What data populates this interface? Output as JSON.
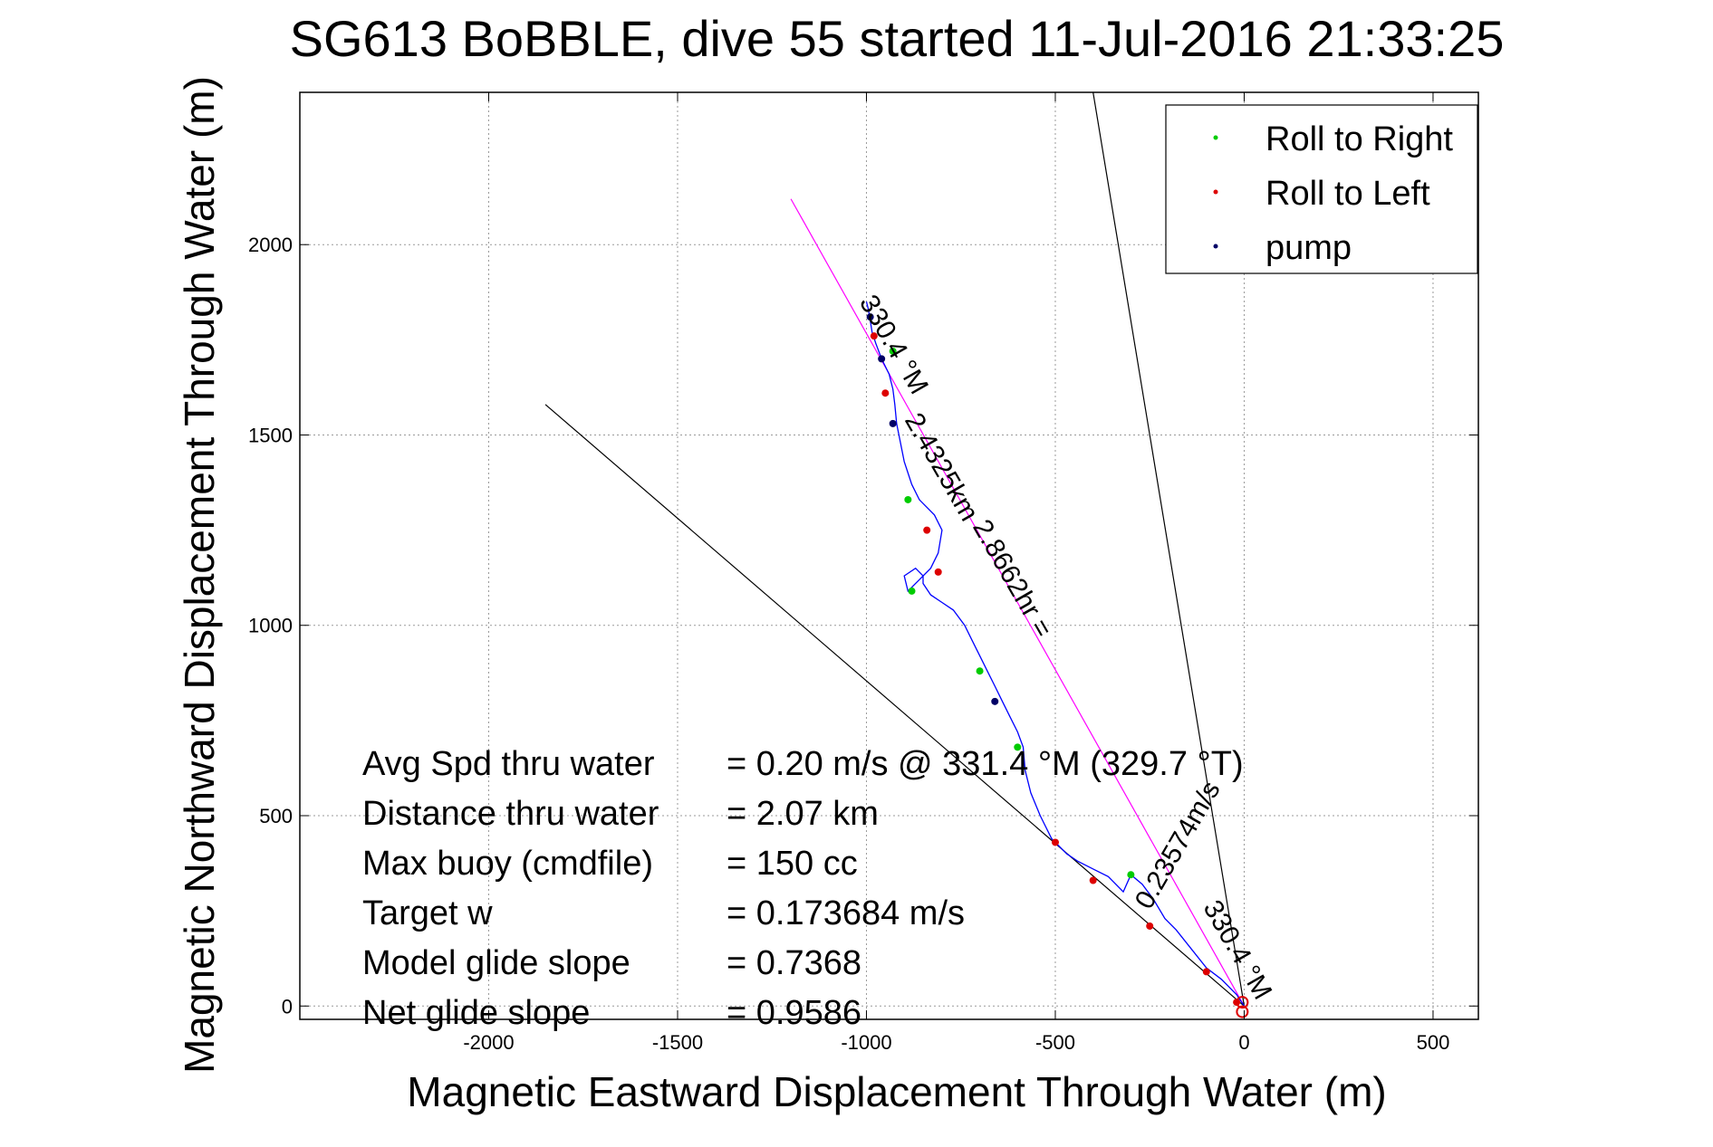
{
  "chart_data": {
    "type": "line",
    "title": "SG613 BoBBLE, dive 55 started 11-Jul-2016 21:33:25",
    "xlabel": "Magnetic Eastward Displacement Through Water (m)",
    "ylabel": "Magnetic Northward Displacement Through Water (m)",
    "xlim": [
      -2500,
      620
    ],
    "ylim": [
      -35,
      2400
    ],
    "xticks": [
      -2000,
      -1500,
      -1000,
      -500,
      0,
      500
    ],
    "yticks": [
      0,
      500,
      1000,
      1500,
      2000
    ],
    "grid": true,
    "legend": {
      "placement": "top-right",
      "entries": [
        {
          "label": "Roll to Right",
          "color": "#00cc00"
        },
        {
          "label": "Roll to Left",
          "color": "#dd0000"
        },
        {
          "label": "pump",
          "color": "#000066"
        }
      ]
    },
    "track": {
      "color": "#0000ff",
      "x": [
        0,
        -20,
        -60,
        -100,
        -140,
        -180,
        -210,
        -240,
        -270,
        -300,
        -320,
        -360,
        -400,
        -440,
        -470,
        -510,
        -540,
        -565,
        -580,
        -585,
        -600,
        -620,
        -640,
        -660,
        -680,
        -700,
        -720,
        -740,
        -770,
        -800,
        -830,
        -850,
        -850,
        -870,
        -900,
        -890,
        -860,
        -830,
        -810,
        -800,
        -820,
        -860,
        -880,
        -900,
        -910,
        -920,
        -925,
        -930,
        -940,
        -960,
        -975,
        -985,
        -990,
        -995,
        -1000
      ],
      "y": [
        0,
        30,
        70,
        100,
        150,
        200,
        230,
        280,
        320,
        345,
        300,
        340,
        360,
        380,
        400,
        440,
        500,
        560,
        620,
        680,
        720,
        760,
        800,
        840,
        880,
        920,
        960,
        1000,
        1040,
        1060,
        1080,
        1110,
        1130,
        1150,
        1130,
        1090,
        1120,
        1150,
        1190,
        1250,
        1290,
        1330,
        1370,
        1430,
        1480,
        1530,
        1580,
        1620,
        1660,
        1700,
        1740,
        1770,
        1800,
        1830,
        1850
      ]
    },
    "markers": {
      "roll_right": {
        "x": [
          -300,
          -600,
          -700,
          -880,
          -890,
          -930
        ],
        "y": [
          345,
          680,
          880,
          1090,
          1330,
          1720
        ]
      },
      "roll_left": {
        "x": [
          -20,
          -100,
          -250,
          -400,
          -500,
          -810,
          -840,
          -950,
          -980
        ],
        "y": [
          10,
          90,
          210,
          330,
          430,
          1140,
          1250,
          1610,
          1760
        ]
      },
      "pump": {
        "x": [
          -660,
          -930,
          -960,
          -990
        ],
        "y": [
          800,
          1530,
          1700,
          1810
        ]
      }
    },
    "heading_lines": [
      {
        "label": "330.4 °M",
        "x": [
          0,
          -1200
        ],
        "y": [
          0,
          2120
        ],
        "color": "#ff00ff"
      },
      {
        "label": "",
        "x": [
          0,
          -1850
        ],
        "y": [
          0,
          1580
        ],
        "color": "#000000"
      },
      {
        "label": "",
        "x": [
          0,
          -400
        ],
        "y": [
          0,
          2400
        ],
        "color": "#000000"
      }
    ],
    "annotations": [
      {
        "text": "330.4 °M",
        "x": -1020,
        "y": 1850,
        "angle": 60
      },
      {
        "text": "2.4325km",
        "x": -900,
        "y": 1540,
        "angle": 60
      },
      {
        "text": "2.8662hr = ",
        "x": -720,
        "y": 1260,
        "angle": 60
      },
      {
        "text": "0.23574m/s",
        "x": -250,
        "y": 250,
        "angle": -60
      },
      {
        "text": "330.4 °M",
        "x": -110,
        "y": 260,
        "angle": 60
      }
    ],
    "stats": [
      {
        "label": "Avg Spd thru water",
        "value": "=  0.20 m/s @ 331.4 °M (329.7 °T)"
      },
      {
        "label": "Distance thru water",
        "value": "=  2.07 km"
      },
      {
        "label": "Max buoy (cmdfile)",
        "value": "= 150 cc"
      },
      {
        "label": "Target w",
        "value": "= 0.173684 m/s"
      },
      {
        "label": "Model glide slope",
        "value": "= 0.7368"
      },
      {
        "label": "Net glide slope",
        "value": "= 0.9586"
      }
    ]
  }
}
